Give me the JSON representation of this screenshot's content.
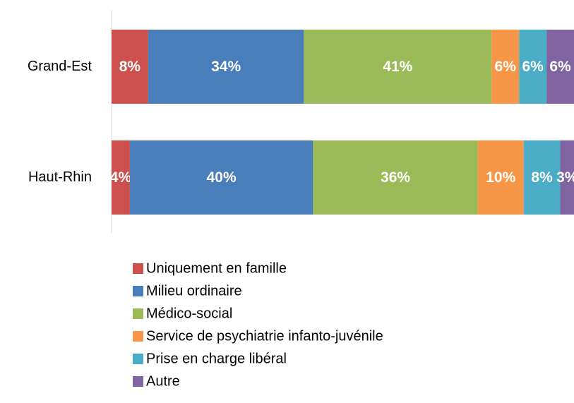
{
  "chart_data": {
    "type": "stacked-bar-horizontal",
    "categories": [
      "Grand-Est",
      "Haut-Rhin"
    ],
    "series": [
      {
        "name": "Uniquement en famille",
        "color": "#cc504d",
        "values": [
          8,
          4
        ],
        "value_labels": [
          "8%",
          "4%"
        ]
      },
      {
        "name": "Milieu ordinaire",
        "color": "#4a7ebb",
        "values": [
          34,
          40
        ],
        "value_labels": [
          "34%",
          "40%"
        ]
      },
      {
        "name": "Médico-social",
        "color": "#9bbb59",
        "values": [
          41,
          36
        ],
        "value_labels": [
          "41%",
          "36%"
        ]
      },
      {
        "name": "Service de psychiatrie infanto-juvénile",
        "color": "#f79646",
        "values": [
          6,
          10
        ],
        "value_labels": [
          "6%",
          "10%"
        ]
      },
      {
        "name": "Prise en charge libéral",
        "color": "#4bacc6",
        "values": [
          6,
          8
        ],
        "value_labels": [
          "6%",
          "8%"
        ]
      },
      {
        "name": "Autre",
        "color": "#8064a2",
        "values": [
          6,
          3
        ],
        "value_labels": [
          "6%",
          "3%"
        ]
      }
    ],
    "legend": "bottom"
  }
}
